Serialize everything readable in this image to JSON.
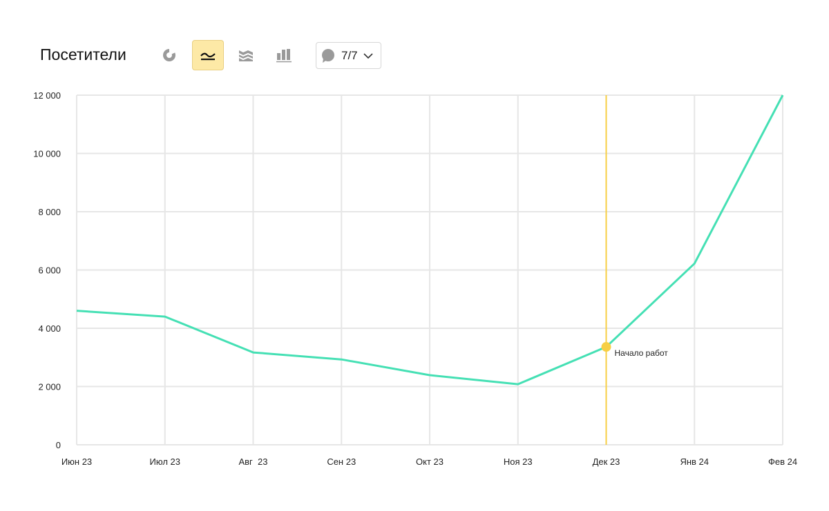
{
  "header": {
    "title": "Посетители",
    "toolbar": [
      {
        "icon": "pie-chart-icon",
        "active": false
      },
      {
        "icon": "line-chart-icon",
        "active": true
      },
      {
        "icon": "area-chart-icon",
        "active": false
      },
      {
        "icon": "bar-chart-icon",
        "active": false
      }
    ],
    "annotations_selector": {
      "icon": "comment-icon",
      "value": "7/7"
    }
  },
  "colors": {
    "line": "#45e0b4",
    "marker": "#f7cf45",
    "grid": "#e6e6e6",
    "active_button": "#fde9a6"
  },
  "chart_data": {
    "type": "line",
    "categories": [
      "Июн 23",
      "Июл 23",
      "Авг  23",
      "Сен 23",
      "Окт 23",
      "Ноя 23",
      "Дек 23",
      "Янв 24",
      "Фев 24"
    ],
    "series": [
      {
        "values": [
          4600,
          4400,
          3170,
          2930,
          2390,
          2080,
          3360,
          6220,
          12000
        ]
      }
    ],
    "yticks": [
      "0",
      "2 000",
      "4 000",
      "6 000",
      "8 000",
      "10 000",
      "12 000"
    ],
    "ylim": [
      0,
      12000
    ],
    "grid": true,
    "annotation": {
      "category": "Дек 23",
      "label": "Начало работ"
    }
  }
}
